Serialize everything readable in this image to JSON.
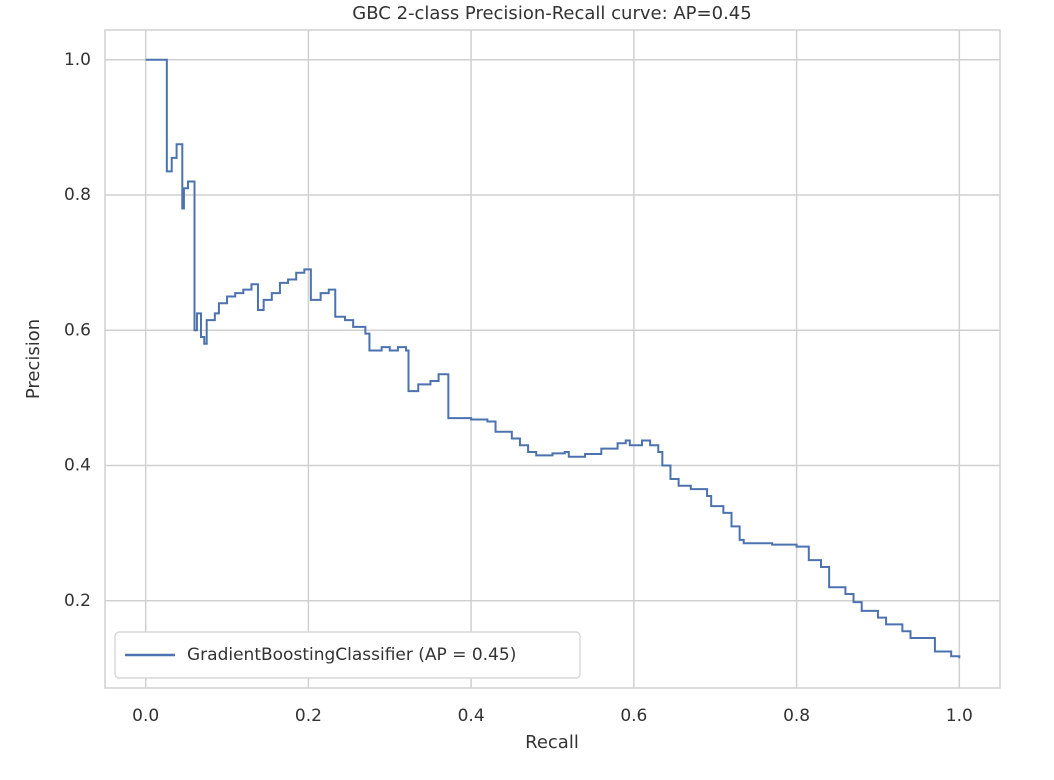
{
  "chart_data": {
    "type": "step",
    "title": "GBC 2-class Precision-Recall curve: AP=0.45",
    "xlabel": "Recall",
    "ylabel": "Precision",
    "xlim": [
      -0.05,
      1.05
    ],
    "ylim": [
      0.071,
      1.044
    ],
    "xticks": [
      {
        "value": 0,
        "label": "0.0"
      },
      0.2,
      0.4,
      0.6,
      0.8,
      {
        "value": 1,
        "label": "1.0"
      }
    ],
    "yticks": [
      0.2,
      0.4,
      0.6,
      0.8,
      {
        "value": 1,
        "label": "1.0"
      }
    ],
    "grid": true,
    "legend": "lower left",
    "series": [
      {
        "name": "GradientBoostingClassifier (AP = 0.45)",
        "color": "#4c72b0",
        "x": [
          0,
          0.026,
          0.032,
          0.038,
          0.045,
          0.047,
          0.052,
          0.06,
          0.063,
          0.068,
          0.072,
          0.075,
          0.085,
          0.09,
          0.1,
          0.11,
          0.12,
          0.13,
          0.138,
          0.145,
          0.155,
          0.165,
          0.175,
          0.185,
          0.195,
          0.203,
          0.215,
          0.225,
          0.233,
          0.245,
          0.255,
          0.27,
          0.275,
          0.29,
          0.3,
          0.31,
          0.32,
          0.323,
          0.335,
          0.35,
          0.36,
          0.372,
          0.39,
          0.4,
          0.42,
          0.43,
          0.45,
          0.46,
          0.47,
          0.48,
          0.5,
          0.515,
          0.52,
          0.54,
          0.56,
          0.58,
          0.59,
          0.595,
          0.61,
          0.62,
          0.63,
          0.635,
          0.645,
          0.655,
          0.67,
          0.69,
          0.695,
          0.71,
          0.72,
          0.73,
          0.735,
          0.77,
          0.8,
          0.815,
          0.83,
          0.84,
          0.86,
          0.87,
          0.88,
          0.9,
          0.91,
          0.93,
          0.94,
          0.96,
          0.97,
          0.99,
          1.0
        ],
        "values": [
          1.0,
          0.835,
          0.855,
          0.875,
          0.78,
          0.81,
          0.82,
          0.6,
          0.625,
          0.59,
          0.58,
          0.615,
          0.625,
          0.64,
          0.65,
          0.655,
          0.66,
          0.668,
          0.63,
          0.645,
          0.655,
          0.67,
          0.675,
          0.685,
          0.69,
          0.645,
          0.655,
          0.66,
          0.62,
          0.615,
          0.605,
          0.595,
          0.57,
          0.575,
          0.57,
          0.575,
          0.57,
          0.51,
          0.52,
          0.525,
          0.535,
          0.47,
          0.47,
          0.468,
          0.465,
          0.45,
          0.44,
          0.43,
          0.42,
          0.415,
          0.418,
          0.42,
          0.413,
          0.417,
          0.425,
          0.433,
          0.437,
          0.43,
          0.437,
          0.43,
          0.42,
          0.4,
          0.38,
          0.37,
          0.365,
          0.355,
          0.34,
          0.33,
          0.31,
          0.29,
          0.285,
          0.283,
          0.28,
          0.26,
          0.25,
          0.22,
          0.21,
          0.198,
          0.185,
          0.175,
          0.165,
          0.155,
          0.145,
          0.145,
          0.125,
          0.118,
          0.115
        ]
      }
    ]
  }
}
